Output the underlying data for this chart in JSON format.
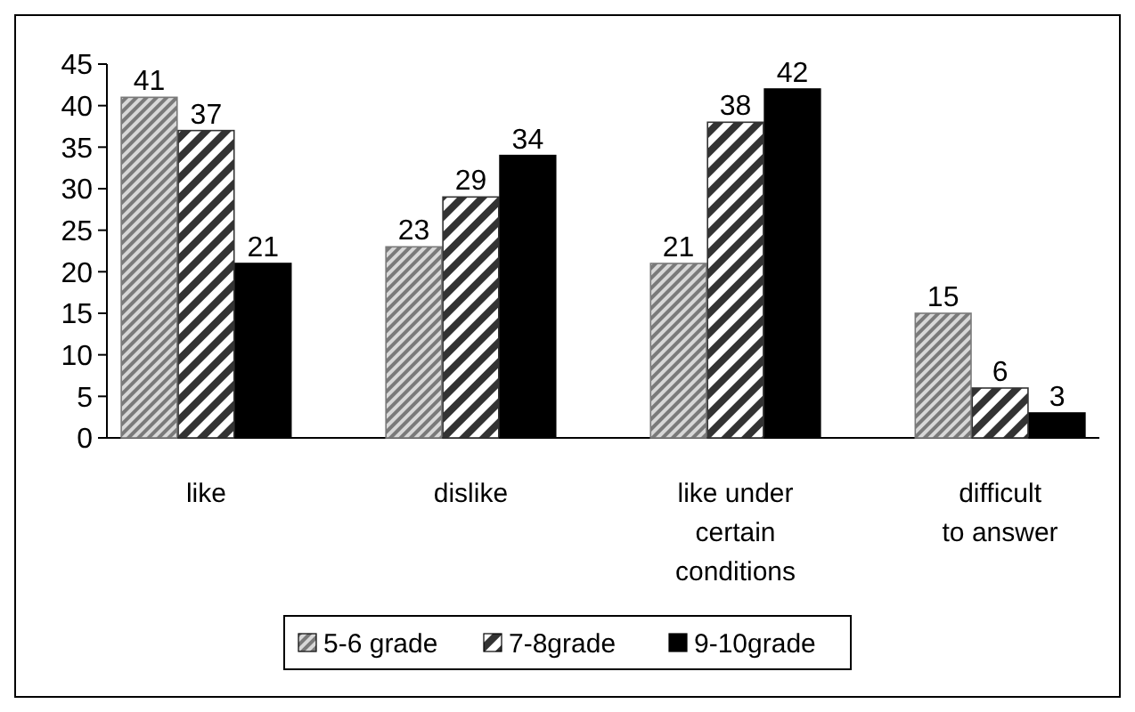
{
  "chart_data": {
    "type": "bar",
    "categories": [
      "like",
      "dislike",
      "like under\ncertain\nconditions",
      "difficult\nto answer"
    ],
    "series": [
      {
        "name": "5-6 grade",
        "color": "#7a7a7a",
        "values": [
          41,
          23,
          21,
          15
        ]
      },
      {
        "name": "7-8grade",
        "color": "#333333",
        "values": [
          37,
          29,
          38,
          6
        ]
      },
      {
        "name": "9-10grade",
        "color": "#000000",
        "values": [
          21,
          34,
          42,
          3
        ]
      }
    ],
    "ylim": [
      0,
      45
    ],
    "yticks": [
      0,
      5,
      10,
      15,
      20,
      25,
      30,
      35,
      40,
      45
    ],
    "grid": false,
    "data_labels": true,
    "legend": "bottom"
  }
}
